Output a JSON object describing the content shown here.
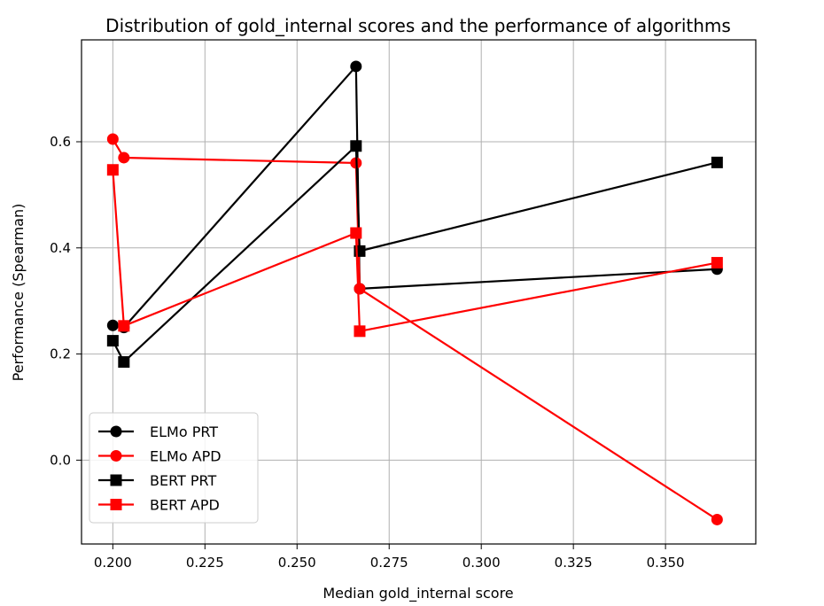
{
  "chart_data": {
    "type": "line",
    "title": "Distribution of gold_internal scores and the performance of algorithms",
    "xlabel": "Median gold_internal score",
    "ylabel": "Performance (Spearman)",
    "xlim": [
      0.1915,
      0.3745
    ],
    "ylim": [
      -0.158,
      0.792
    ],
    "xticks": [
      0.2,
      0.225,
      0.25,
      0.275,
      0.3,
      0.325,
      0.35
    ],
    "xtick_labels": [
      "0.200",
      "0.225",
      "0.250",
      "0.275",
      "0.300",
      "0.325",
      "0.350"
    ],
    "yticks": [
      0.0,
      0.2,
      0.4,
      0.6
    ],
    "ytick_labels": [
      "0.0",
      "0.2",
      "0.4",
      "0.6"
    ],
    "grid": true,
    "legend_position": "lower-left",
    "series": [
      {
        "name": "ELMo PRT",
        "color": "#000000",
        "marker": "circle",
        "points": [
          [
            0.2,
            0.254
          ],
          [
            0.203,
            0.25
          ],
          [
            0.266,
            0.742
          ],
          [
            0.267,
            0.323
          ],
          [
            0.364,
            0.36
          ]
        ]
      },
      {
        "name": "ELMo APD",
        "color": "#ff0000",
        "marker": "circle",
        "points": [
          [
            0.2,
            0.605
          ],
          [
            0.203,
            0.57
          ],
          [
            0.266,
            0.56
          ],
          [
            0.267,
            0.323
          ],
          [
            0.364,
            -0.112
          ]
        ]
      },
      {
        "name": "BERT PRT",
        "color": "#000000",
        "marker": "square",
        "points": [
          [
            0.2,
            0.225
          ],
          [
            0.203,
            0.185
          ],
          [
            0.266,
            0.592
          ],
          [
            0.267,
            0.394
          ],
          [
            0.364,
            0.561
          ]
        ]
      },
      {
        "name": "BERT APD",
        "color": "#ff0000",
        "marker": "square",
        "points": [
          [
            0.2,
            0.547
          ],
          [
            0.203,
            0.253
          ],
          [
            0.266,
            0.428
          ],
          [
            0.267,
            0.243
          ],
          [
            0.364,
            0.372
          ]
        ]
      }
    ]
  }
}
